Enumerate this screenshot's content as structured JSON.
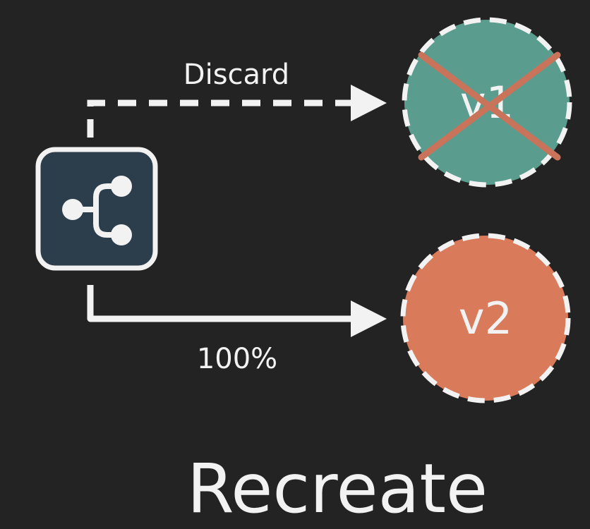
{
  "title": "Recreate",
  "router": {
    "icon": "branch-icon"
  },
  "edges": {
    "discard": {
      "label": "Discard",
      "style": "dashed"
    },
    "traffic": {
      "label": "100%",
      "style": "solid"
    }
  },
  "nodes": {
    "v1": {
      "label": "v1",
      "status": "discarded"
    },
    "v2": {
      "label": "v2",
      "status": "active"
    }
  },
  "colors": {
    "background": "#232323",
    "line": "#f2f2f2",
    "router_fill": "#2c3e4c",
    "v1_fill": "#5a9d8f",
    "v2_fill": "#d97a5a",
    "cross": "#c8735a"
  }
}
